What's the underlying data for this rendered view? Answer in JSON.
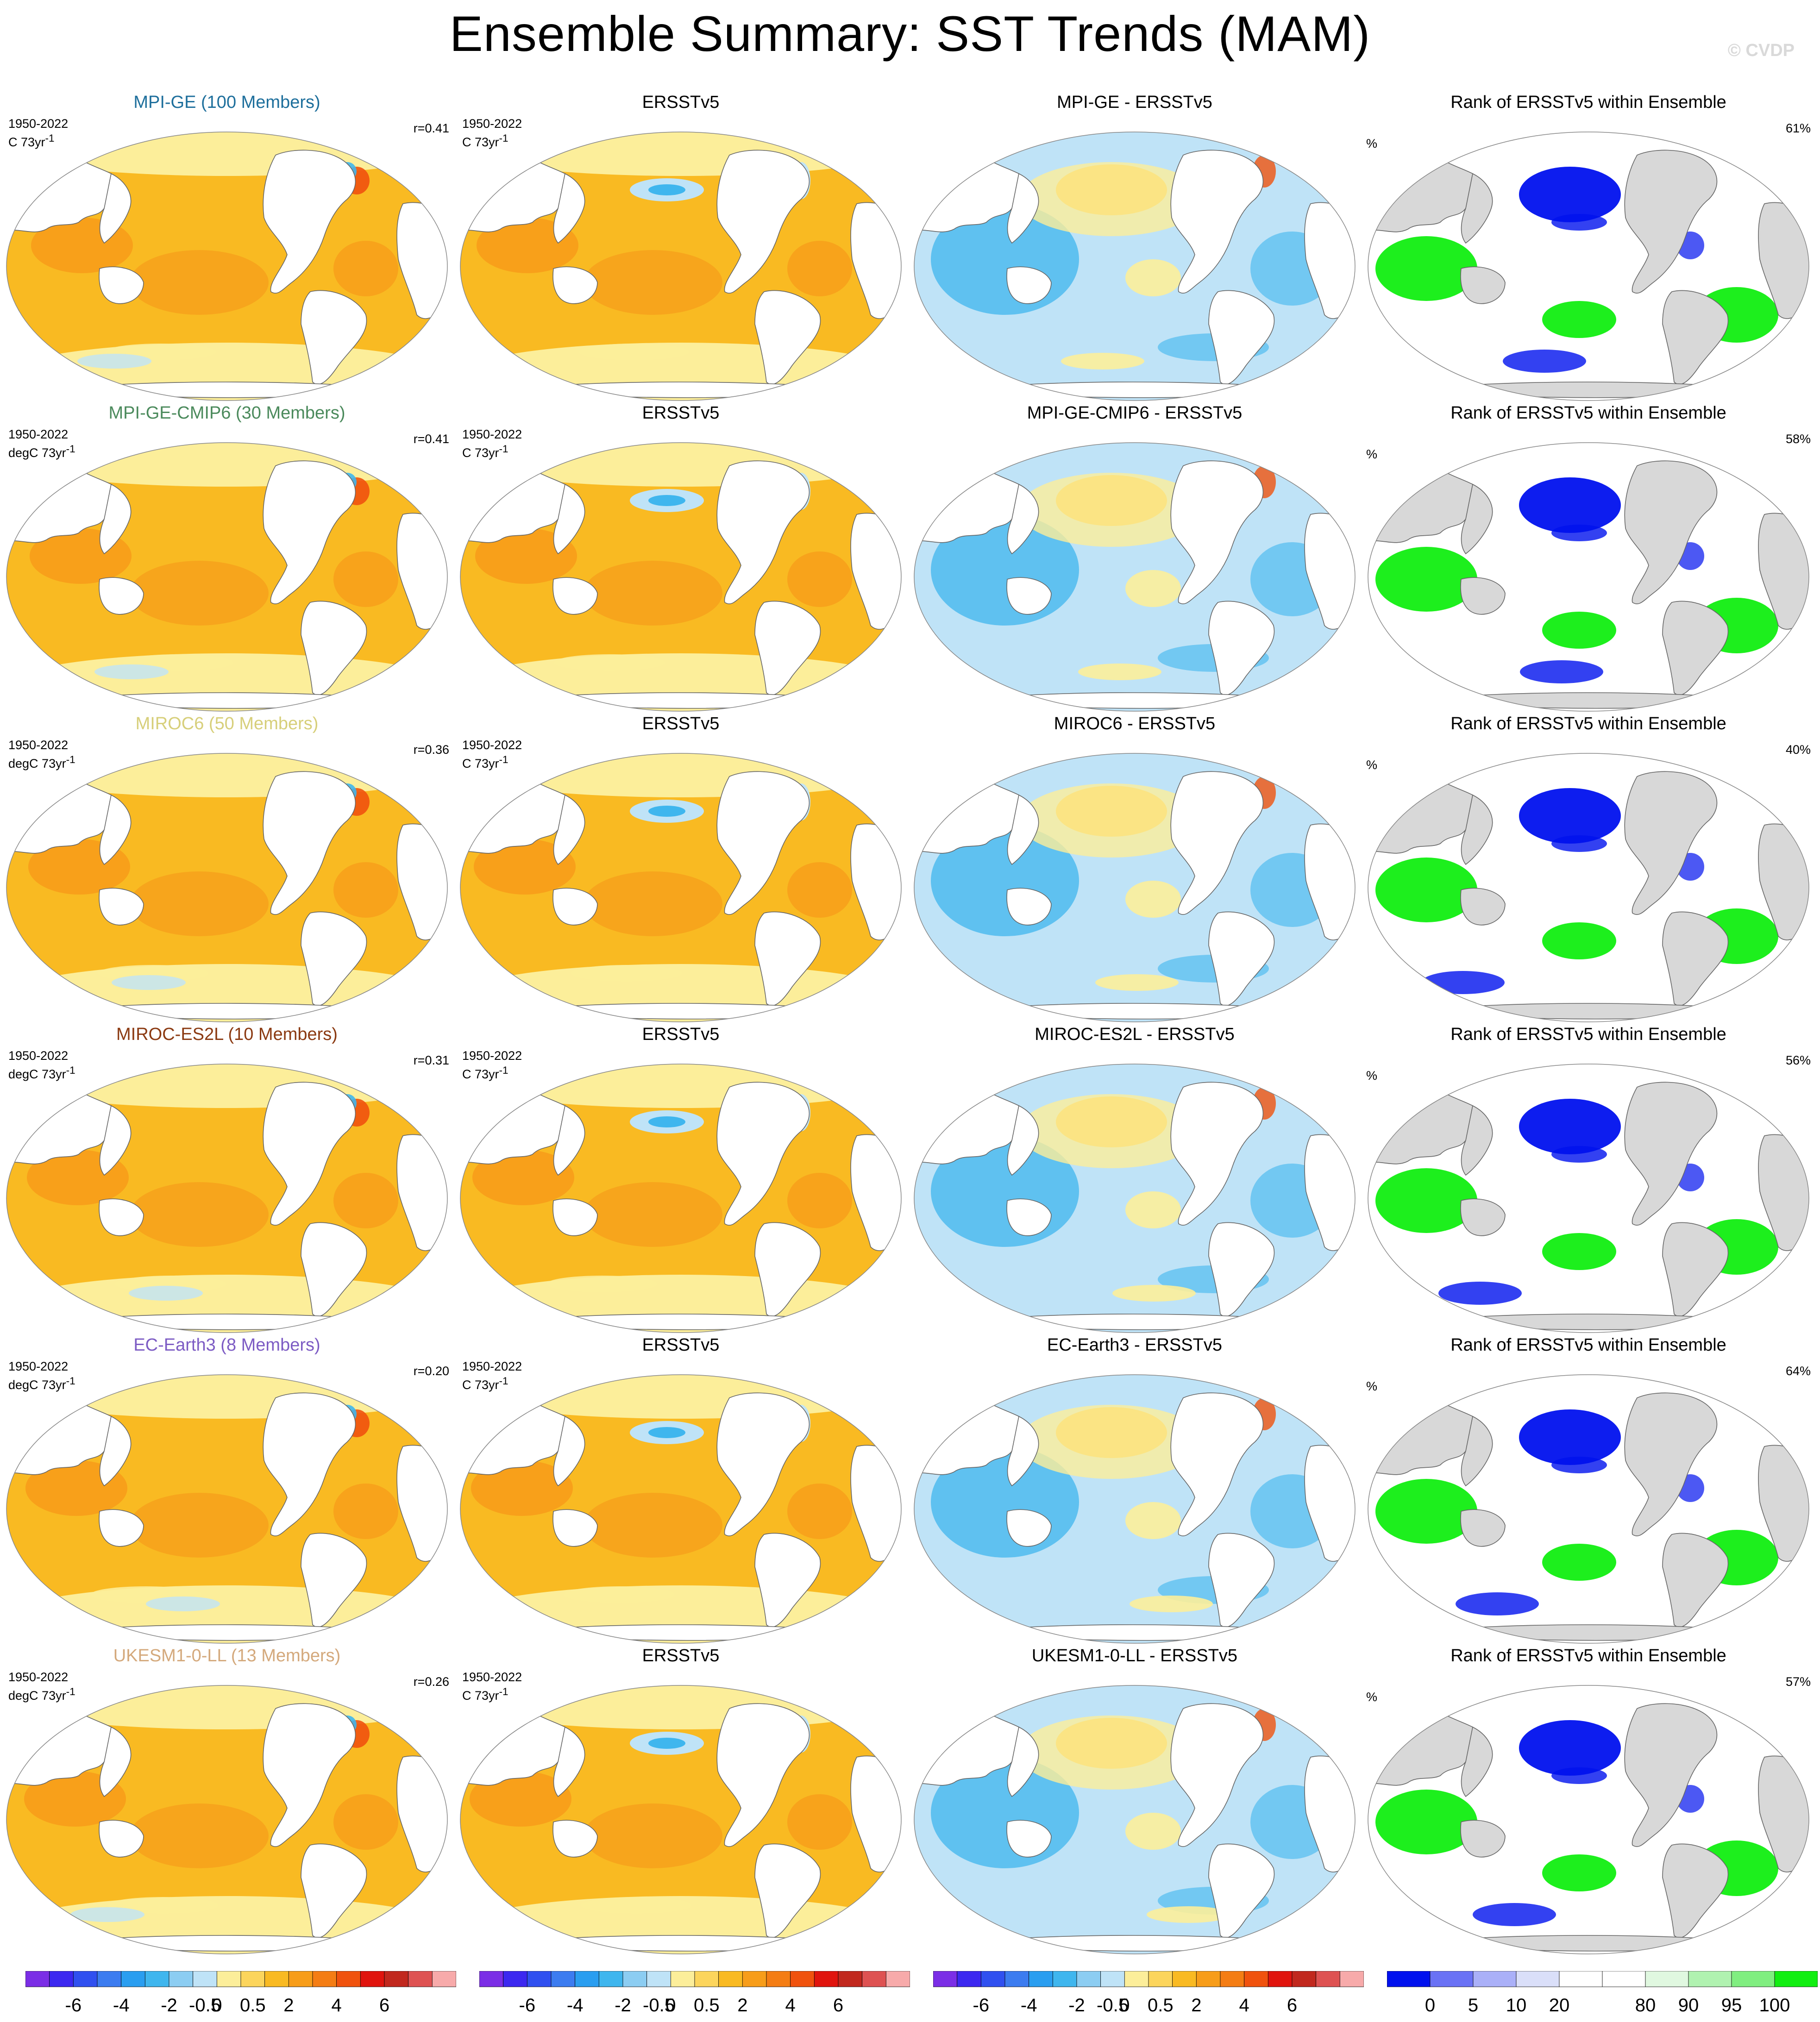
{
  "title": "Ensemble Summary: SST Trends (MAM)",
  "watermark": "© CVDP",
  "obs_name": "ERSSTv5",
  "rank_title": "Rank of ERSSTv5 within Ensemble",
  "percent_label": "%",
  "colors": {
    "warm_dominant": "#f9ba22",
    "warm_strong": "#f79d1a",
    "warm_light": "#fcee9a",
    "cool_light": "#bfe3f7",
    "cool": "#3fb6ee",
    "rank_low": "#0011ee",
    "rank_high": "#11ee11",
    "land_rank": "#d8d8d8"
  },
  "rows": [
    {
      "ens_title": "MPI-GE (100 Members)",
      "title_color": "#1e6f9c",
      "ens_period": "1950-2022",
      "ens_units": "C 73yr",
      "corr": "r=0.41",
      "obs_period": "1950-2022",
      "obs_units": "C 73yr",
      "diff_title": "MPI-GE - ERSSTv5",
      "rank_pct": "61%"
    },
    {
      "ens_title": "MPI-GE-CMIP6 (30 Members)",
      "title_color": "#4b8a5c",
      "ens_period": "1950-2022",
      "ens_units": "degC 73yr",
      "corr": "r=0.41",
      "obs_period": "1950-2022",
      "obs_units": "C 73yr",
      "diff_title": "MPI-GE-CMIP6 - ERSSTv5",
      "rank_pct": "58%"
    },
    {
      "ens_title": "MIROC6 (50 Members)",
      "title_color": "#d7cf7a",
      "ens_period": "1950-2022",
      "ens_units": "degC 73yr",
      "corr": "r=0.36",
      "obs_period": "1950-2022",
      "obs_units": "C 73yr",
      "diff_title": "MIROC6 - ERSSTv5",
      "rank_pct": "40%"
    },
    {
      "ens_title": "MIROC-ES2L (10 Members)",
      "title_color": "#8b3a12",
      "ens_period": "1950-2022",
      "ens_units": "degC 73yr",
      "corr": "r=0.31",
      "obs_period": "1950-2022",
      "obs_units": "C 73yr",
      "diff_title": "MIROC-ES2L - ERSSTv5",
      "rank_pct": "56%"
    },
    {
      "ens_title": "EC-Earth3 (8 Members)",
      "title_color": "#7d5cc4",
      "ens_period": "1950-2022",
      "ens_units": "degC 73yr",
      "corr": "r=0.20",
      "obs_period": "1950-2022",
      "obs_units": "C 73yr",
      "diff_title": "EC-Earth3 - ERSSTv5",
      "rank_pct": "64%"
    },
    {
      "ens_title": "UKESM1-0-LL (13 Members)",
      "title_color": "#d4a97c",
      "ens_period": "1950-2022",
      "ens_units": "degC 73yr",
      "corr": "r=0.26",
      "obs_period": "1950-2022",
      "obs_units": "C 73yr",
      "diff_title": "UKESM1-0-LL - ERSSTv5",
      "rank_pct": "57%"
    }
  ],
  "trend_colorbar": {
    "colors": [
      "#7b2ee6",
      "#3c28f0",
      "#3050f0",
      "#3c7cf0",
      "#2a9ef0",
      "#3fb6ee",
      "#8ccdf2",
      "#bfe3f7",
      "#fcee9a",
      "#fcd55c",
      "#f9ba22",
      "#f79d1a",
      "#f47d14",
      "#f0520e",
      "#e0140e",
      "#c1281e",
      "#de5252",
      "#f7aaaa"
    ],
    "ticks": [
      "-6",
      "-4",
      "-2",
      "-0.5",
      "0",
      "0.5",
      "2",
      "4",
      "6"
    ]
  },
  "rank_colorbar": {
    "colors": [
      "#0011ee",
      "#6a72f5",
      "#aab0f8",
      "#dadff9",
      "#ffffff",
      "#ffffff",
      "#e0f8e0",
      "#b0f2b0",
      "#80ee80",
      "#11ee11"
    ],
    "ticks": [
      "0",
      "5",
      "10",
      "20",
      "80",
      "90",
      "95",
      "100"
    ]
  }
}
